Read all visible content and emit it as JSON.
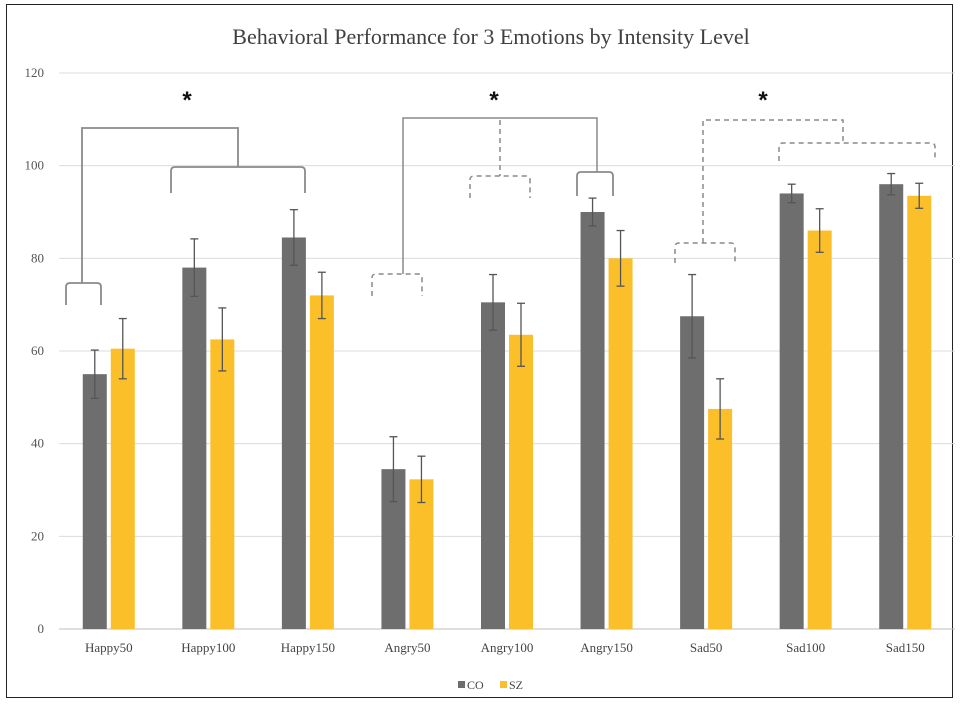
{
  "chart_data": {
    "type": "bar",
    "title": "Behavioral Performance for 3 Emotions by Intensity Level",
    "xlabel": "",
    "ylabel": "",
    "ylim": [
      0,
      120
    ],
    "yticks": [
      0,
      20,
      40,
      60,
      80,
      100,
      120
    ],
    "categories": [
      "Happy50",
      "Happy100",
      "Happy150",
      "Angry50",
      "Angry100",
      "Angry150",
      "Sad50",
      "Sad100",
      "Sad150"
    ],
    "series": [
      {
        "name": "CO",
        "color": "#6e6e6e",
        "values": [
          55,
          78,
          84.5,
          34.5,
          70.5,
          90,
          67.5,
          94,
          96
        ],
        "errors": [
          5.2,
          6.2,
          6,
          7,
          6,
          3,
          9,
          2,
          2.3
        ]
      },
      {
        "name": "SZ",
        "color": "#fbbf2a",
        "values": [
          60.5,
          62.5,
          72,
          32.3,
          63.5,
          80,
          47.5,
          86,
          93.5
        ],
        "errors": [
          6.5,
          6.8,
          5,
          5,
          6.8,
          6,
          6.5,
          4.7,
          2.7
        ]
      }
    ],
    "grid": true,
    "legend_position": "bottom-center",
    "significance": [
      "*",
      "*",
      "*"
    ]
  }
}
